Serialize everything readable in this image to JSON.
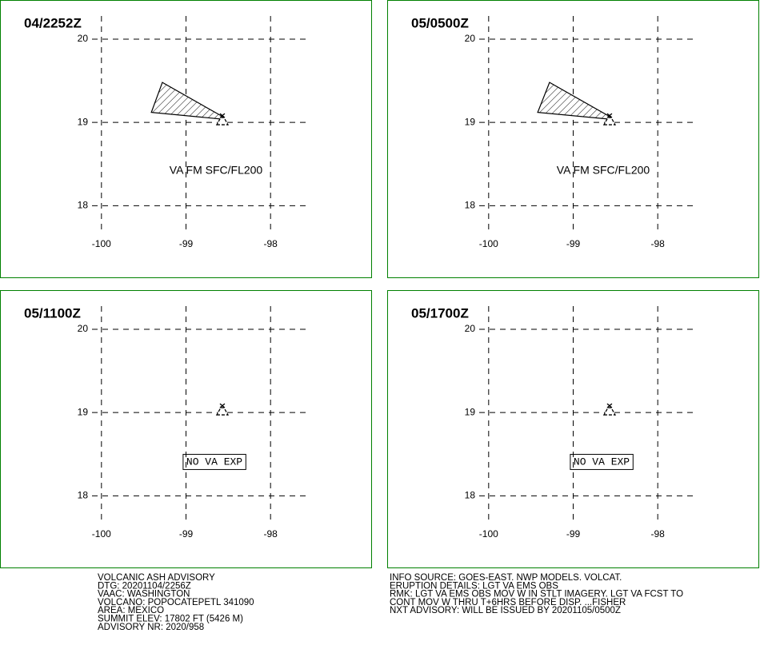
{
  "map": {
    "xlim": [
      -101.2,
      -96.8
    ],
    "ylim": [
      17.13,
      20.47
    ],
    "xticks": [
      -100,
      -99,
      -98
    ],
    "yticks": [
      18,
      19,
      20
    ],
    "volcano": {
      "lon": -98.57,
      "lat": 19.02
    }
  },
  "panels": [
    {
      "time": "04/2252Z",
      "annotation": "VA FM SFC/FL200",
      "ash_polygon": [
        [
          -99.28,
          19.48
        ],
        [
          -99.41,
          19.12
        ],
        [
          -98.58,
          19.04
        ],
        [
          -98.55,
          19.06
        ]
      ]
    },
    {
      "time": "05/0500Z",
      "annotation": "VA FM SFC/FL200",
      "ash_polygon": [
        [
          -99.28,
          19.48
        ],
        [
          -99.42,
          19.12
        ],
        [
          -98.58,
          19.04
        ],
        [
          -98.55,
          19.06
        ]
      ]
    },
    {
      "time": "05/1100Z",
      "annotation": "NO VA EXP"
    },
    {
      "time": "05/1700Z",
      "annotation": "NO VA EXP"
    }
  ],
  "advisory": {
    "left": [
      "VOLCANIC ASH ADVISORY",
      "DTG: 20201104/2256Z",
      "VAAC: WASHINGTON",
      "VOLCANO: POPOCATEPETL 341090",
      "AREA: MEXICO",
      "SUMMIT ELEV: 17802 FT (5426 M)",
      "ADVISORY NR: 2020/958"
    ],
    "right": [
      "INFO SOURCE: GOES-EAST. NWP MODELS. VOLCAT.",
      "ERUPTION DETAILS: LGT VA EMS OBS",
      "RMK: LGT VA EMS OBS MOV W IN STLT IMAGERY. LGT VA FCST TO",
      "CONT MOV W THRU T+6HRS BEFORE DISP. ...FISHER",
      "NXT ADVISORY: WILL BE ISSUED BY 20201105/0500Z"
    ]
  }
}
